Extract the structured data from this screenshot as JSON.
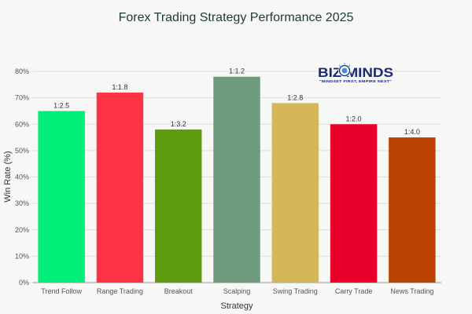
{
  "chart_data": {
    "type": "bar",
    "title": "Forex Trading Strategy Performance 2025",
    "xlabel": "Strategy",
    "ylabel": "Win Rate (%)",
    "ylim": [
      0,
      80
    ],
    "yticks": [
      0,
      10,
      20,
      30,
      40,
      50,
      60,
      70,
      80
    ],
    "ytick_suffix": "%",
    "grid": true,
    "categories": [
      "Trend Follow",
      "Range Trading",
      "Breakout",
      "Scalping",
      "Swing Trading",
      "Carry Trade",
      "News Trading"
    ],
    "values": [
      65,
      72,
      58,
      78,
      68,
      60,
      55
    ],
    "data_labels": [
      "1:2.5",
      "1:1.8",
      "1:3.2",
      "1:1.2",
      "1:2.8",
      "1:2.0",
      "1:4.0"
    ],
    "colors": [
      "#00ee77",
      "#ff3344",
      "#5e9c0e",
      "#6e9b7b",
      "#d4b857",
      "#e8002a",
      "#bb4200"
    ]
  },
  "logo": {
    "main_text": "BIZ MINDS",
    "tagline": "\"MINDSET FIRST, EMPIRE NEXT\"",
    "colors": [
      "#1b2a78",
      "#3b8fe0"
    ]
  }
}
